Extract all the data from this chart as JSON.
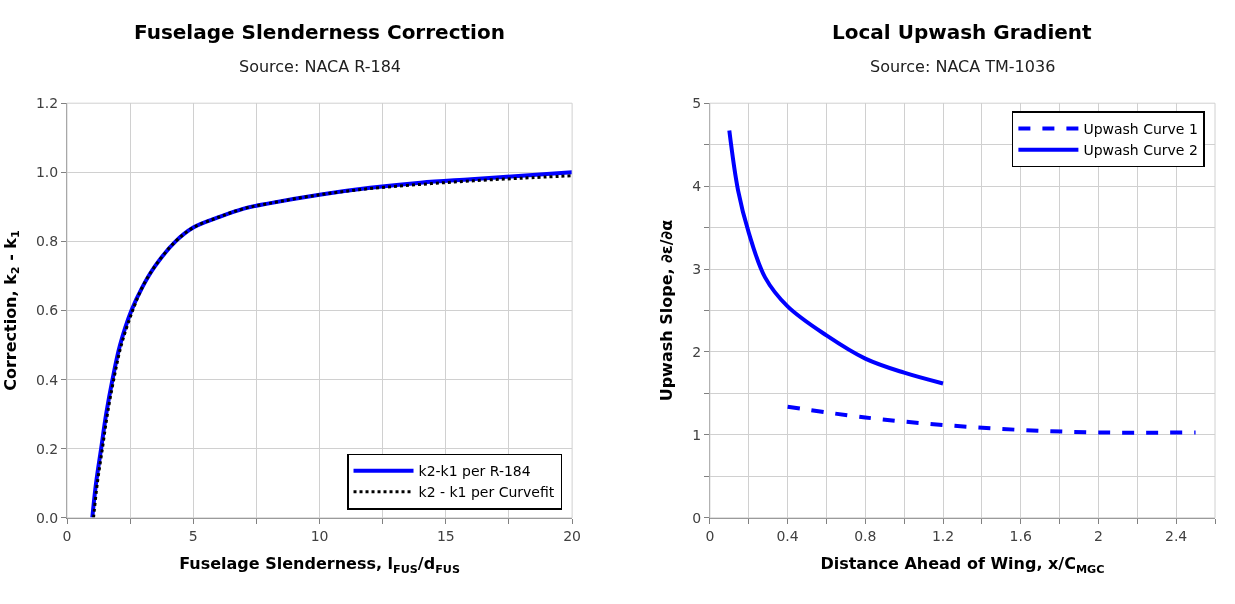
{
  "chart_data": [
    {
      "type": "line",
      "title": "Fuselage Slenderness Correction",
      "subtitle": "Source: NACA R-184",
      "xlabel": "Fuselage Slenderness, l$_{FUS}$/d$_{FUS}$",
      "ylabel": "Correction, k$_{2}$ - k$_{1}$",
      "xlim": [
        0,
        20
      ],
      "xticks": [
        0,
        {
          "value": 2.5,
          "label": null
        },
        5,
        {
          "value": 7.5,
          "label": null
        },
        10,
        {
          "value": 12.5,
          "label": null
        },
        15,
        {
          "value": 17.5,
          "label": null
        },
        20
      ],
      "ylim": [
        0,
        1.2
      ],
      "yticks": [
        {
          "value": 0,
          "label": "0.0"
        },
        {
          "value": 0.2,
          "label": "0.2"
        },
        {
          "value": 0.4,
          "label": "0.4"
        },
        {
          "value": 0.6,
          "label": "0.6"
        },
        {
          "value": 0.8,
          "label": "0.8"
        },
        {
          "value": 1.0,
          "label": "1.0"
        },
        {
          "value": 1.2,
          "label": "1.2"
        }
      ],
      "grid": true,
      "legend": "bottom right",
      "series": [
        {
          "name": "k2-k1 per R-184",
          "color": "#0000ff",
          "line_style": "solid",
          "x": [
            1,
            1.15,
            1.35,
            1.55,
            1.8,
            2.1,
            2.55,
            3,
            3.5,
            4.3,
            5,
            6,
            7,
            8,
            10,
            12,
            14,
            16,
            18,
            20
          ],
          "values": [
            0,
            0.1,
            0.2,
            0.3,
            0.4,
            0.5,
            0.6,
            0.67,
            0.73,
            0.8,
            0.84,
            0.87,
            0.895,
            0.91,
            0.935,
            0.955,
            0.97,
            0.98,
            0.99,
            1.0
          ]
        },
        {
          "name": "k2 - k1 per Curvefit",
          "color": "#000000",
          "line_style": "dotted",
          "x": [
            1.05,
            1.2,
            1.4,
            1.6,
            1.85,
            2.15,
            2.6,
            3,
            3.5,
            4.3,
            5,
            6,
            7,
            8,
            10,
            12,
            14,
            16,
            18,
            20
          ],
          "values": [
            0,
            0.1,
            0.2,
            0.3,
            0.4,
            0.5,
            0.6,
            0.67,
            0.73,
            0.8,
            0.84,
            0.87,
            0.895,
            0.91,
            0.935,
            0.953,
            0.965,
            0.975,
            0.983,
            0.99
          ]
        }
      ]
    },
    {
      "type": "line",
      "title": "Local Upwash Gradient",
      "subtitle": "Source: NACA TM-1036",
      "xlabel": "Distance Ahead of Wing, x/C$_{MGC}$",
      "ylabel": "Upwash Slope, ∂ε/∂α",
      "xlim": [
        0,
        2.6
      ],
      "xticks": [
        0,
        {
          "value": 0.2,
          "label": null
        },
        0.4,
        {
          "value": 0.6,
          "label": null
        },
        0.8,
        {
          "value": 1.0,
          "label": null
        },
        1.2,
        {
          "value": 1.4,
          "label": null
        },
        1.6,
        {
          "value": 1.8,
          "label": null
        },
        2,
        {
          "value": 2.2,
          "label": null
        },
        2.4,
        {
          "value": 2.6,
          "label": null
        }
      ],
      "ylim": [
        0,
        5
      ],
      "yticks": [
        0,
        {
          "value": 0.5,
          "label": null
        },
        1,
        {
          "value": 1.5,
          "label": null
        },
        2,
        {
          "value": 2.5,
          "label": null
        },
        3,
        {
          "value": 3.5,
          "label": null
        },
        4,
        {
          "value": 4.5,
          "label": null
        },
        5
      ],
      "grid": true,
      "legend": "top right",
      "series": [
        {
          "name": "Upwash Curve 1",
          "color": "#0000ff",
          "line_style": "dashed",
          "x": [
            0.4,
            0.8,
            1.2,
            1.6,
            2.0,
            2.5
          ],
          "values": [
            1.34,
            1.21,
            1.12,
            1.06,
            1.03,
            1.03
          ]
        },
        {
          "name": "Upwash Curve 2",
          "color": "#0000ff",
          "line_style": "solid",
          "x": [
            0.1,
            0.145,
            0.2,
            0.284,
            0.4,
            0.6,
            0.8,
            1.0,
            1.2
          ],
          "values": [
            4.67,
            3.95,
            3.44,
            2.9,
            2.55,
            2.2,
            1.92,
            1.75,
            1.62
          ]
        }
      ]
    }
  ]
}
